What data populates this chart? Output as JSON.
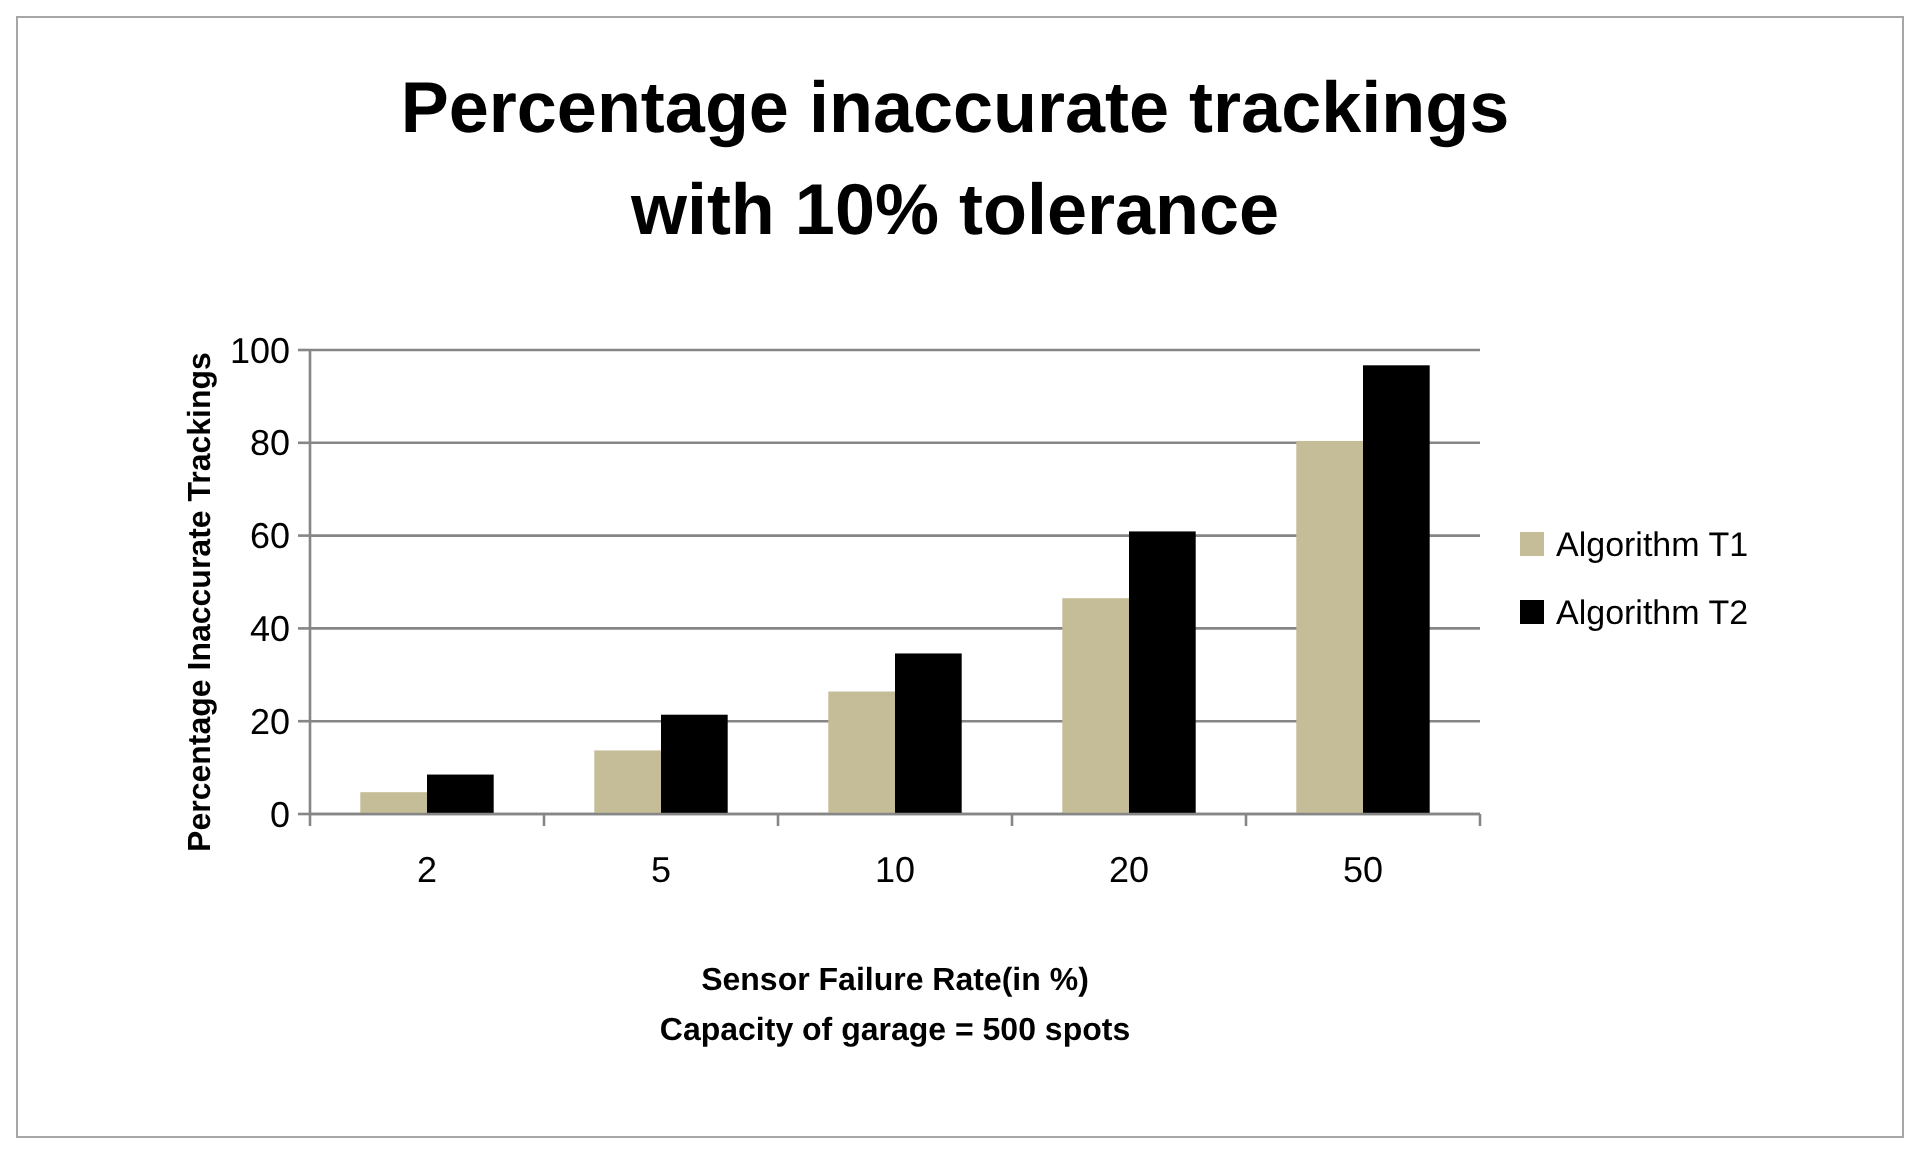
{
  "chart_data": {
    "type": "bar",
    "title": "Percentage inaccurate trackings with 10% tolerance",
    "xlabel": "Sensor Failure Rate(in %)\nCapacity of garage = 500 spots",
    "ylabel": "Percentage Inaccurate Trackings",
    "categories": [
      "2",
      "5",
      "10",
      "20",
      "50"
    ],
    "series": [
      {
        "name": "Algorithm T1",
        "color": "#c4bd97",
        "values": [
          4.7,
          13.7,
          26.4,
          46.5,
          80.4
        ]
      },
      {
        "name": "Algorithm T2",
        "color": "#000000",
        "values": [
          8.5,
          21.4,
          34.6,
          60.9,
          96.7
        ]
      }
    ],
    "ylim": [
      0,
      100
    ],
    "yticks": [
      0,
      20,
      40,
      60,
      80,
      100
    ],
    "grid": "y",
    "legend": "right"
  }
}
